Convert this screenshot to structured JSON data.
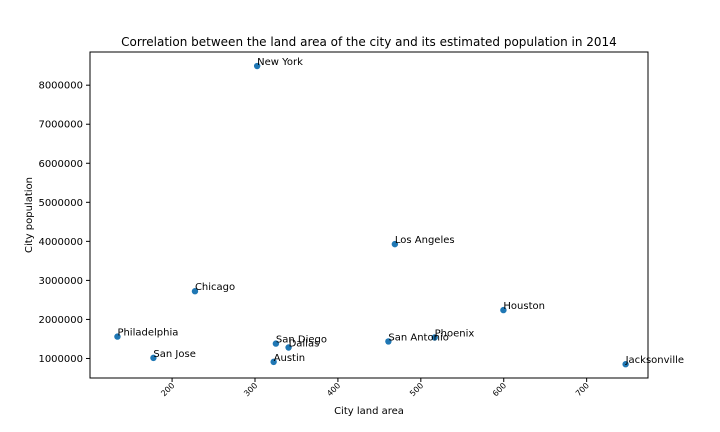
{
  "chart_data": {
    "type": "scatter",
    "title": "Correlation between the land area of the city and its estimated population in 2014",
    "xlabel": "City land area",
    "ylabel": "City population",
    "xlim": [
      101,
      774
    ],
    "ylim": [
      500000,
      8850000
    ],
    "xticks": [
      200,
      300,
      400,
      500,
      600,
      700
    ],
    "yticks": [
      1000000,
      2000000,
      3000000,
      4000000,
      5000000,
      6000000,
      7000000,
      8000000
    ],
    "grid": false,
    "marker_color": "#1f77b4",
    "points": [
      {
        "label": "New York",
        "x": 302.6,
        "y": 8491079
      },
      {
        "label": "Los Angeles",
        "x": 468.7,
        "y": 3928864
      },
      {
        "label": "Chicago",
        "x": 227.6,
        "y": 2722389
      },
      {
        "label": "Houston",
        "x": 599.6,
        "y": 2239558
      },
      {
        "label": "Philadelphia",
        "x": 134.1,
        "y": 1560297
      },
      {
        "label": "Phoenix",
        "x": 516.7,
        "y": 1537058
      },
      {
        "label": "San Antonio",
        "x": 460.9,
        "y": 1436697
      },
      {
        "label": "San Diego",
        "x": 325.2,
        "y": 1381069
      },
      {
        "label": "Dallas",
        "x": 340.5,
        "y": 1281047
      },
      {
        "label": "San Jose",
        "x": 177.5,
        "y": 1015785
      },
      {
        "label": "Austin",
        "x": 322.5,
        "y": 912791
      },
      {
        "label": "Jacksonville",
        "x": 747.0,
        "y": 853382
      }
    ]
  }
}
